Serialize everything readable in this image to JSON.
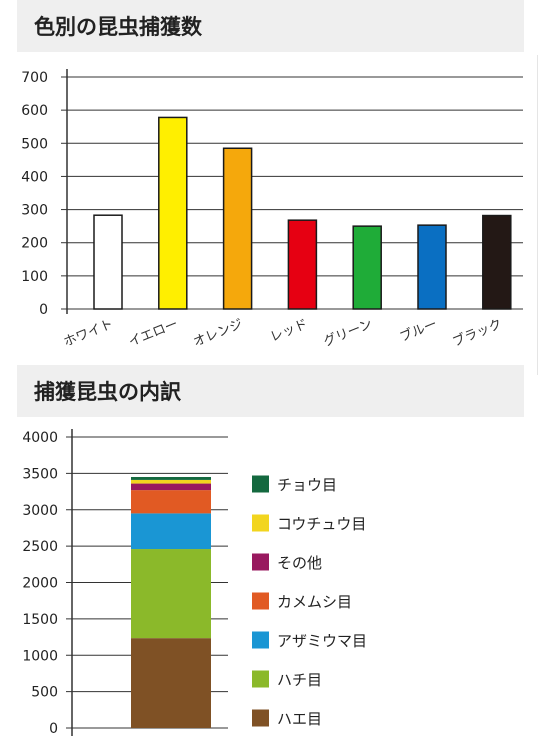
{
  "sections": {
    "chart1_title": "色別の昆虫捕獲数",
    "chart2_title": "捕獲昆虫の内訳"
  },
  "chart_data": [
    {
      "type": "bar",
      "title": "色別の昆虫捕獲数",
      "categories": [
        "ホワイト",
        "イエロー",
        "オレンジ",
        "レッド",
        "グリーン",
        "ブルー",
        "ブラック"
      ],
      "values": [
        283,
        578,
        485,
        268,
        250,
        253,
        282
      ],
      "colors": [
        "#ffffff",
        "#ffef00",
        "#f5a80c",
        "#e60012",
        "#1fac38",
        "#0a6fc2",
        "#231815"
      ],
      "ylim": [
        0,
        700
      ],
      "yticks": [
        0,
        100,
        200,
        300,
        400,
        500,
        600,
        700
      ],
      "grid": true
    },
    {
      "type": "bar",
      "subtype": "stacked",
      "title": "捕獲昆虫の内訳",
      "categories": [
        ""
      ],
      "series": [
        {
          "name": "ハエ目",
          "values": [
            1235
          ],
          "color": "#7f5125"
        },
        {
          "name": "ハチ目",
          "values": [
            1225
          ],
          "color": "#8bb92a"
        },
        {
          "name": "アザミウマ目",
          "values": [
            490
          ],
          "color": "#1a96d4"
        },
        {
          "name": "カメムシ目",
          "values": [
            320
          ],
          "color": "#e15a23"
        },
        {
          "name": "その他",
          "values": [
            90
          ],
          "color": "#99195f"
        },
        {
          "name": "コウチュウ目",
          "values": [
            50
          ],
          "color": "#f2d51f"
        },
        {
          "name": "チョウ目",
          "values": [
            40
          ],
          "color": "#14693f"
        }
      ],
      "ylim": [
        0,
        4000
      ],
      "yticks": [
        0,
        500,
        1000,
        1500,
        2000,
        2500,
        3000,
        3500,
        4000
      ],
      "legend": "right"
    }
  ]
}
